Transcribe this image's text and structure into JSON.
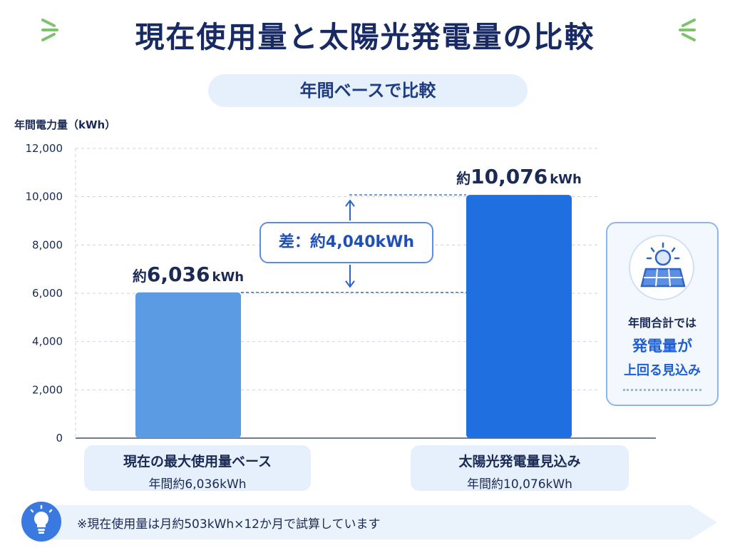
{
  "title": "現在使用量と太陽光発電量の比較",
  "subtitle": "年間ベースで比較",
  "side_card": {
    "line1": "年間合計では",
    "line2": "発電量が",
    "line3": "上回る見込み",
    "icon": "solar-panel-sun-icon"
  },
  "footnote": {
    "icon": "lightbulb-icon",
    "text": "※現在使用量は月約503kWh×12か月で試算しています"
  },
  "colors": {
    "bar_current": "#5b9be3",
    "bar_solar": "#1f6fe0",
    "accent": "#1f5fd6",
    "title": "#172a64"
  },
  "chart_data": {
    "type": "bar",
    "ylabel": "年間電力量（kWh）",
    "ylim": [
      0,
      12000
    ],
    "yticks": [
      0,
      2000,
      4000,
      6000,
      8000,
      10000,
      12000
    ],
    "ytick_labels": [
      "0",
      "2,000",
      "4,000",
      "6,000",
      "8,000",
      "10,000",
      "12,000"
    ],
    "grid": true,
    "categories": [
      "現在の最大使用量ベース",
      "太陽光発電量見込み"
    ],
    "category_sublabels": [
      "年間約6,036kWh",
      "年間約10,076kWh"
    ],
    "values": [
      6036,
      10076
    ],
    "data_labels": [
      {
        "prefix": "約",
        "number": "6,036",
        "unit": "kWh"
      },
      {
        "prefix": "約",
        "number": "10,076",
        "unit": "kWh"
      }
    ],
    "difference": {
      "label": "差：約4,040kWh",
      "value": 4040
    }
  }
}
